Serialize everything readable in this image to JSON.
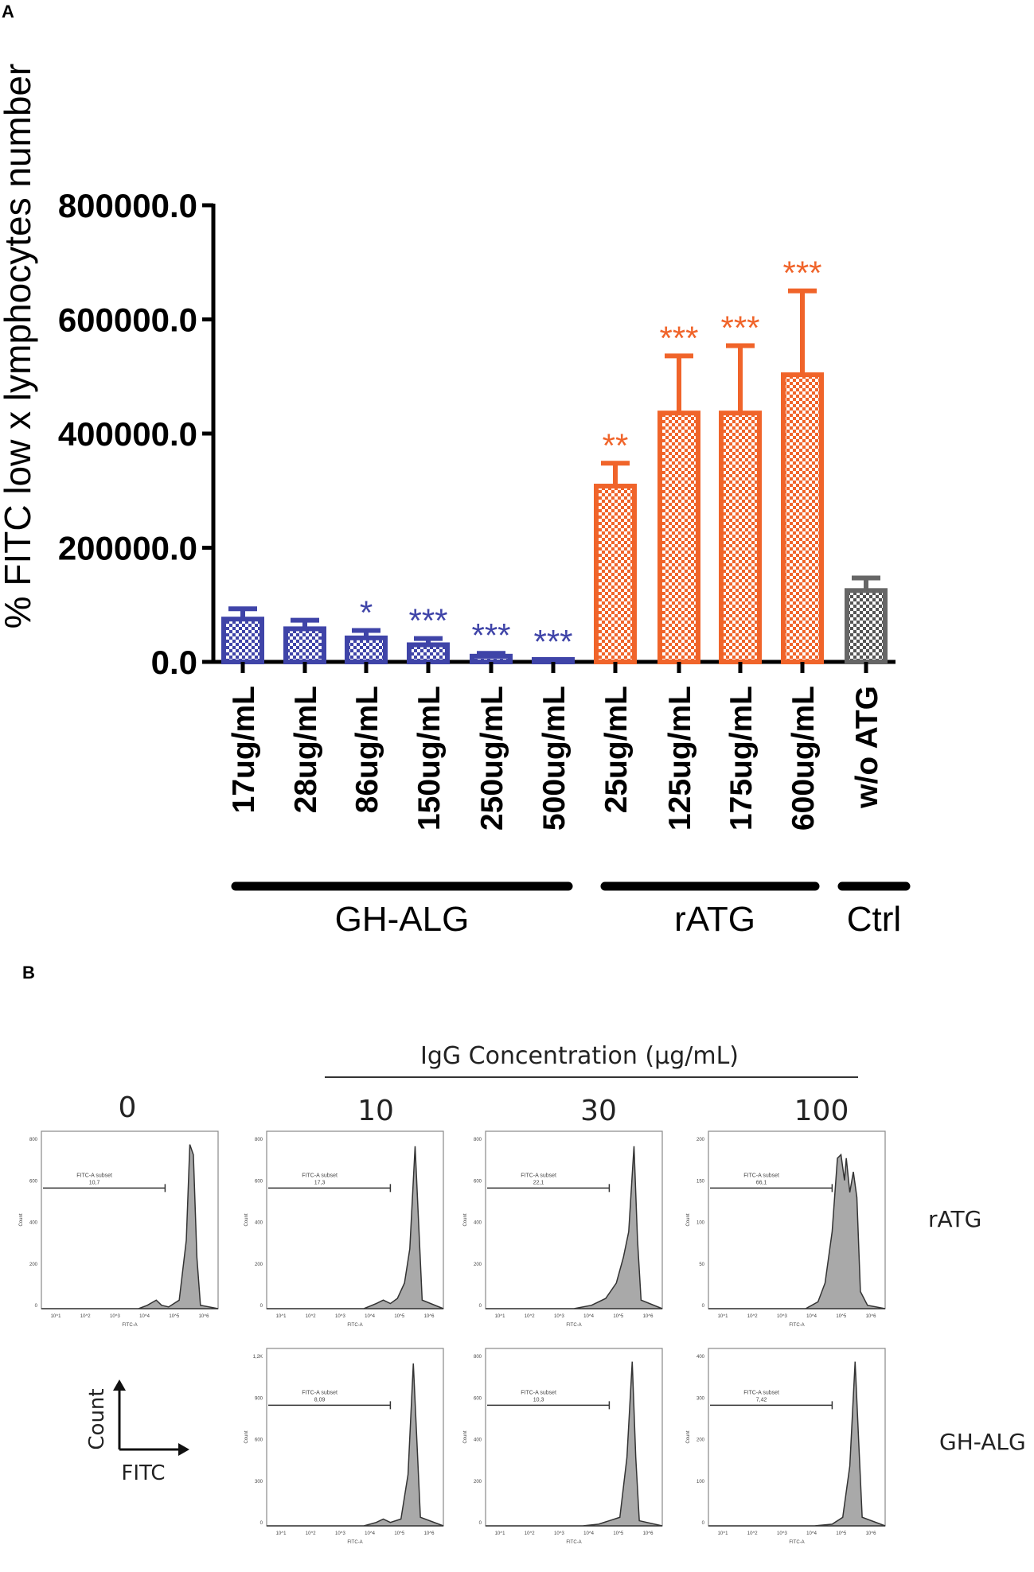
{
  "panel_a_label": "A",
  "panel_b_label": "B",
  "chart_data": {
    "type": "bar",
    "ylabel": "% FITC low x lymphocytes number",
    "yticks": [
      "800000.0",
      "600000.0",
      "400000.0",
      "200000.0",
      "0.0"
    ],
    "ytick_values": [
      800000,
      600000,
      400000,
      200000,
      0
    ],
    "ylim": [
      0,
      800000
    ],
    "categories": [
      "17ug/mL",
      "28ug/mL",
      "86ug/mL",
      "150ug/mL",
      "250ug/mL",
      "500ug/mL",
      "25ug/mL",
      "125ug/mL",
      "175ug/mL",
      "600ug/mL",
      "w/o ATG"
    ],
    "values": [
      75000,
      58000,
      42000,
      30000,
      10000,
      2000,
      308000,
      436000,
      436000,
      503000,
      125000
    ],
    "errors": [
      18000,
      15000,
      13000,
      11000,
      5000,
      2000,
      40000,
      100000,
      118000,
      147000,
      22000
    ],
    "groups": [
      "GH-ALG",
      "GH-ALG",
      "GH-ALG",
      "GH-ALG",
      "GH-ALG",
      "GH-ALG",
      "rATG",
      "rATG",
      "rATG",
      "rATG",
      "Ctrl"
    ],
    "significance": [
      "",
      "",
      "*",
      "***",
      "***",
      "***",
      "**",
      "***",
      "***",
      "***",
      ""
    ],
    "group_labels": [
      "GH-ALG",
      "rATG",
      "Ctrl"
    ],
    "colors": {
      "GH-ALG": "#3f44a8",
      "rATG": "#f0642a",
      "Ctrl": "#666666"
    }
  },
  "panel_b": {
    "header": "IgG Concentration (µg/mL)",
    "concentrations": [
      "0",
      "10",
      "30",
      "100"
    ],
    "row_labels": [
      "rATG",
      "GH-ALG"
    ],
    "legend_y": "Count",
    "legend_x": "FITC",
    "plots": [
      {
        "gate": "FITC-A subset",
        "value": "10,7",
        "yticks": [
          "800",
          "600",
          "400",
          "200",
          "0"
        ]
      },
      {
        "gate": "FITC-A subset",
        "value": "17,3",
        "yticks": [
          "800",
          "600",
          "400",
          "200",
          "0"
        ]
      },
      {
        "gate": "FITC-A subset",
        "value": "22,1",
        "yticks": [
          "800",
          "600",
          "400",
          "200",
          "0"
        ]
      },
      {
        "gate": "FITC-A subset",
        "value": "66,1",
        "yticks": [
          "200",
          "150",
          "100",
          "50",
          "0"
        ]
      },
      {
        "gate": "FITC-A subset",
        "value": "8,09",
        "yticks": [
          "1,2K",
          "900",
          "600",
          "300",
          "0"
        ]
      },
      {
        "gate": "FITC-A subset",
        "value": "10,3",
        "yticks": [
          "800",
          "600",
          "400",
          "200",
          "0"
        ]
      },
      {
        "gate": "FITC-A subset",
        "value": "7,42",
        "yticks": [
          "400",
          "300",
          "200",
          "100",
          "0"
        ]
      }
    ],
    "axis_x_label": "FITC-A",
    "axis_y_label": "Count",
    "xticks": [
      "10^1",
      "10^2",
      "10^3",
      "10^4",
      "10^5",
      "10^6"
    ]
  }
}
